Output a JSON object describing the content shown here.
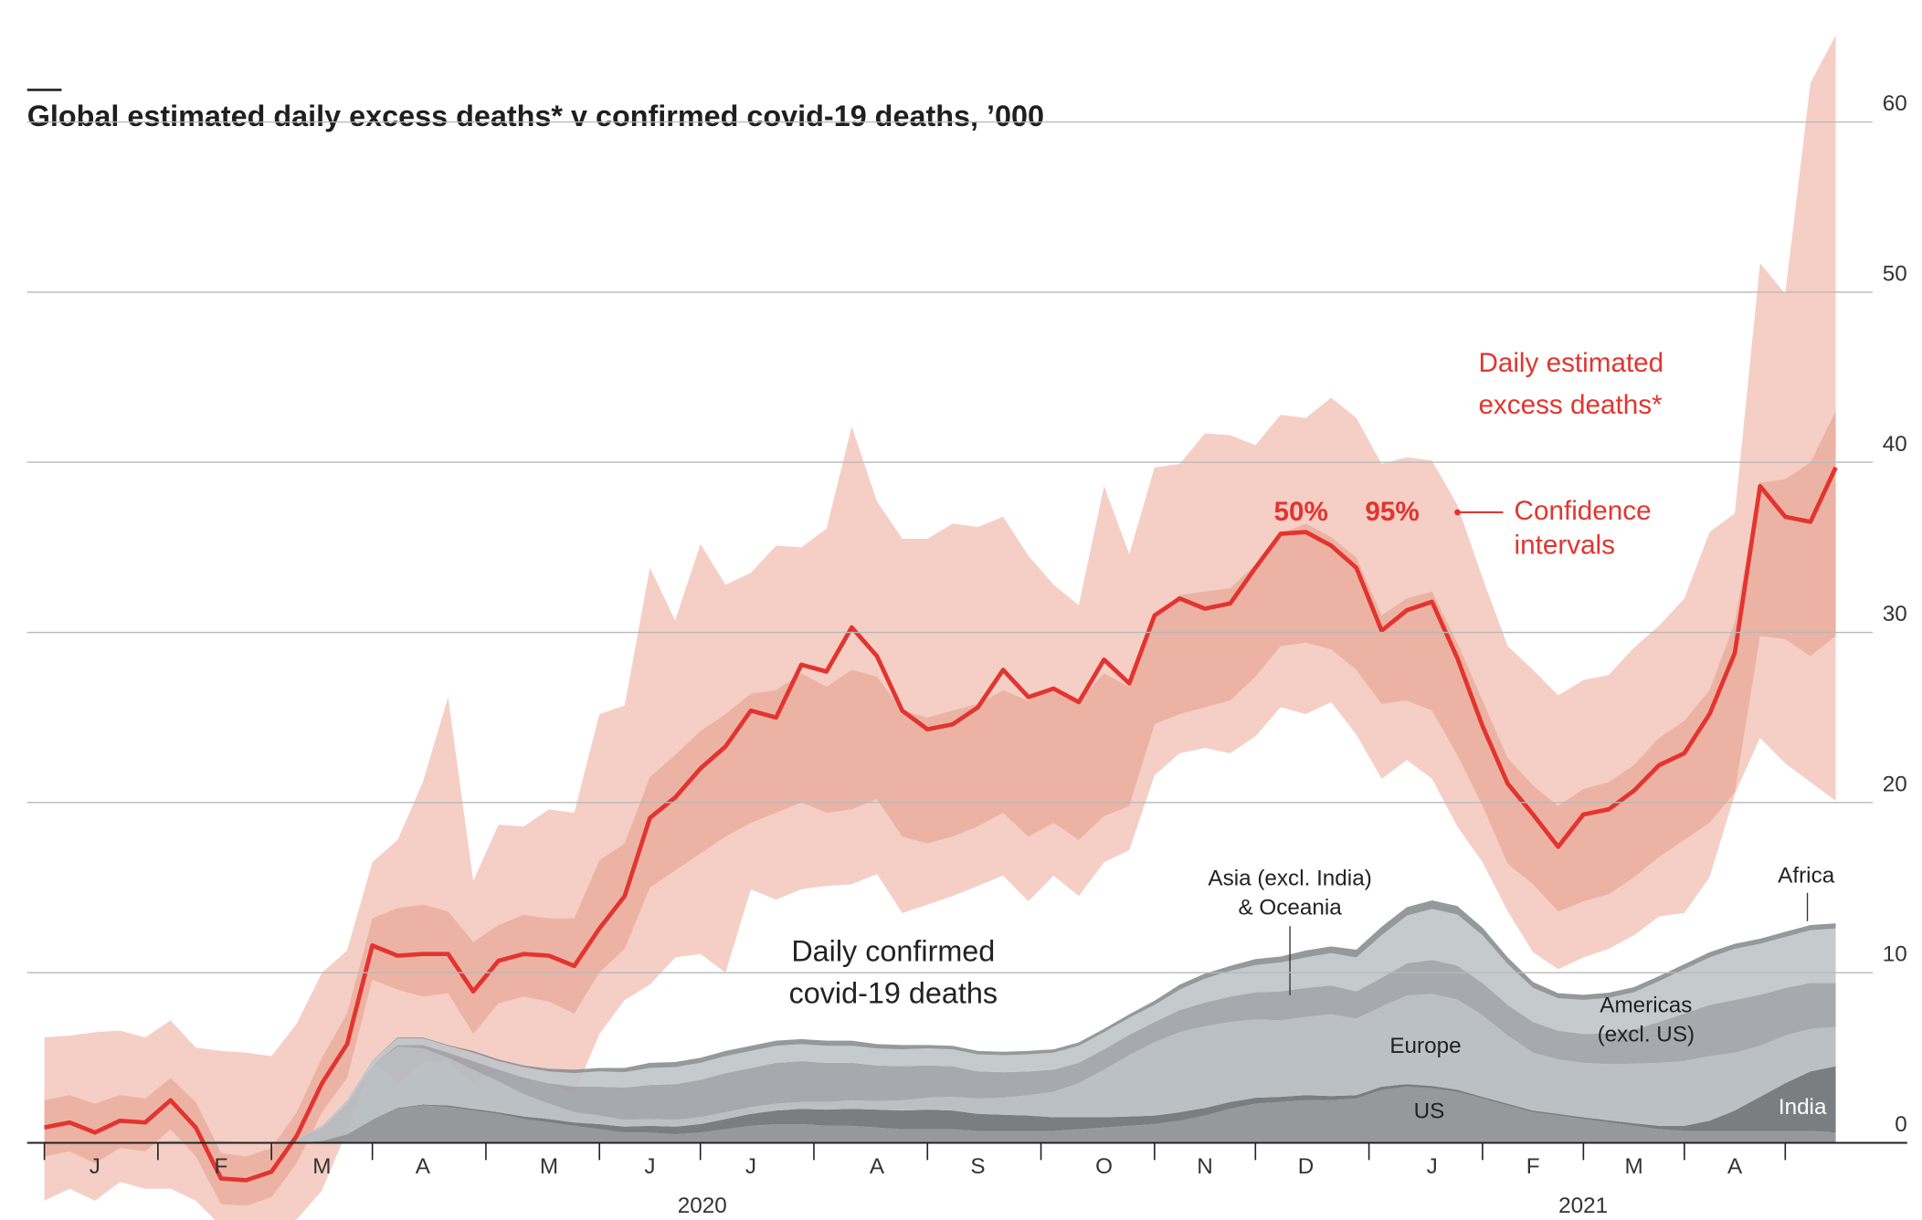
{
  "chart_data": {
    "type": "line",
    "title": "Global estimated daily excess deaths* v confirmed covid-19 deaths, ’000",
    "categories": [
      null,
      null,
      "J",
      null,
      null,
      null,
      null,
      "F",
      null,
      null,
      null,
      "M",
      null,
      null,
      null,
      "A",
      null,
      null,
      null,
      null,
      "M",
      null,
      null,
      null,
      "J",
      null,
      null,
      null,
      "J",
      null,
      null,
      null,
      null,
      "A",
      null,
      null,
      null,
      "S",
      null,
      null,
      null,
      null,
      "O",
      null,
      null,
      null,
      "N",
      null,
      null,
      null,
      "D",
      null,
      null,
      null,
      null,
      "J",
      null,
      null,
      null,
      "F",
      null,
      null,
      null,
      "M",
      null,
      null,
      null,
      "A",
      null,
      null,
      null,
      null
    ],
    "years": [
      "2020",
      "2021"
    ],
    "ylim": [
      -5,
      65
    ],
    "yticks": [
      0,
      10,
      20,
      30,
      40,
      50,
      60
    ],
    "grid": true,
    "excess": {
      "name": [
        "Daily estimated",
        "excess deaths*"
      ],
      "color": "#e3342f",
      "values": [
        0.9,
        1.2,
        0.6,
        1.3,
        1.2,
        2.5,
        0.9,
        -2.1,
        -2.2,
        -1.7,
        0.4,
        3.5,
        5.8,
        11.6,
        11.0,
        11.1,
        11.1,
        8.9,
        10.7,
        11.1,
        11.0,
        10.4,
        12.6,
        14.5,
        19.1,
        20.3,
        22.0,
        23.3,
        25.4,
        25.0,
        28.1,
        27.7,
        30.3,
        28.6,
        25.4,
        24.3,
        24.6,
        25.6,
        27.8,
        26.2,
        26.7,
        25.9,
        28.4,
        27.0,
        31.0,
        32.0,
        31.4,
        31.7,
        33.8,
        35.8,
        35.9,
        35.1,
        33.8,
        30.1,
        31.3,
        31.8,
        28.5,
        24.5,
        21.1,
        19.3,
        17.4,
        19.3,
        19.6,
        20.7,
        22.2,
        22.9,
        25.2,
        28.8,
        38.6,
        36.8,
        36.5,
        39.7
      ]
    },
    "confidence_label": [
      "Confidence",
      "intervals"
    ],
    "intervals": [
      {
        "name": "95%",
        "color": "#f5cfc5",
        "lower": [
          -3.4,
          -2.7,
          -3.4,
          -2.3,
          -2.7,
          -2.7,
          -3.4,
          -4.9,
          -4.9,
          -4.9,
          -4.5,
          -2.8,
          0.7,
          4.8,
          3.5,
          4.7,
          4.8,
          3.5,
          4.2,
          4.0,
          3.5,
          2.9,
          6.4,
          8.4,
          9.3,
          10.9,
          11.1,
          10.0,
          14.9,
          14.3,
          14.9,
          15.1,
          15.2,
          15.8,
          13.5,
          14.0,
          14.5,
          15.1,
          15.7,
          14.2,
          15.7,
          14.5,
          16.5,
          17.2,
          21.6,
          22.9,
          23.2,
          22.9,
          23.9,
          25.6,
          25.2,
          25.9,
          24.0,
          21.4,
          22.5,
          21.4,
          18.6,
          16.5,
          13.6,
          11.2,
          10.2,
          10.9,
          11.4,
          12.2,
          13.3,
          13.5,
          15.6,
          20.5,
          23.8,
          22.3,
          21.2,
          20.1
        ],
        "upper": [
          6.2,
          6.3,
          6.5,
          6.6,
          6.2,
          7.2,
          5.6,
          5.4,
          5.3,
          5.1,
          7.0,
          10.0,
          11.3,
          16.5,
          17.8,
          21.2,
          26.2,
          15.4,
          18.7,
          18.6,
          19.6,
          19.4,
          25.2,
          25.7,
          33.8,
          30.7,
          35.2,
          32.8,
          33.5,
          35.1,
          35.0,
          36.1,
          42.1,
          37.7,
          35.5,
          35.5,
          36.4,
          36.2,
          36.8,
          34.5,
          32.8,
          31.6,
          38.6,
          34.6,
          39.7,
          39.9,
          41.7,
          41.6,
          41.0,
          42.8,
          42.6,
          43.8,
          42.6,
          39.9,
          40.3,
          40.1,
          37.5,
          33.2,
          29.2,
          27.8,
          26.3,
          27.2,
          27.5,
          29.1,
          30.4,
          32.0,
          35.9,
          37.0,
          51.7,
          49.9,
          62.3,
          65.1
        ]
      },
      {
        "name": "50%",
        "color": "#ecb3a5",
        "lower": [
          -0.8,
          -0.5,
          -1.2,
          -0.3,
          -0.5,
          0.8,
          -0.8,
          -3.6,
          -3.7,
          -3.2,
          -1.2,
          1.8,
          3.8,
          9.6,
          9.0,
          8.6,
          8.8,
          6.4,
          8.2,
          8.6,
          8.3,
          7.6,
          10.0,
          11.4,
          15.0,
          16.0,
          17.0,
          18.0,
          18.8,
          19.4,
          20.0,
          19.4,
          19.6,
          20.2,
          18.0,
          17.6,
          18.0,
          18.6,
          19.4,
          18.0,
          18.8,
          17.8,
          19.2,
          19.8,
          24.6,
          25.2,
          25.6,
          26.0,
          27.4,
          29.2,
          29.4,
          29.0,
          27.8,
          25.8,
          26.0,
          25.4,
          22.8,
          19.8,
          16.4,
          15.2,
          13.6,
          14.2,
          14.6,
          15.6,
          16.8,
          17.8,
          18.8,
          20.6,
          29.8,
          29.6,
          28.6,
          29.8
        ],
        "upper": [
          2.5,
          2.8,
          2.3,
          2.8,
          2.6,
          3.8,
          2.4,
          -0.6,
          -0.8,
          -0.3,
          1.8,
          5.0,
          7.6,
          13.2,
          13.8,
          14.0,
          13.6,
          11.8,
          12.8,
          13.4,
          13.2,
          13.2,
          16.6,
          17.6,
          21.5,
          22.8,
          24.2,
          25.2,
          26.4,
          26.6,
          27.6,
          26.8,
          27.8,
          27.4,
          25.4,
          25.0,
          25.4,
          25.8,
          26.6,
          26.0,
          26.8,
          26.0,
          27.6,
          26.8,
          30.8,
          32.2,
          32.4,
          32.6,
          34.0,
          35.8,
          36.4,
          35.6,
          34.4,
          31.0,
          32.0,
          32.4,
          29.4,
          26.0,
          22.6,
          21.0,
          19.8,
          20.8,
          21.2,
          22.2,
          23.8,
          24.8,
          26.6,
          30.6,
          38.8,
          39.0,
          40.0,
          43.0
        ]
      }
    ],
    "confirmed_label": [
      "Daily confirmed",
      "covid-19 deaths"
    ],
    "confirmed": [
      {
        "name": [
          "US"
        ],
        "color": "#8d9093",
        "values": [
          0,
          0,
          0,
          0,
          0,
          0,
          0,
          0,
          0,
          0,
          0,
          0.1,
          0.5,
          1.3,
          2.0,
          2.2,
          2.1,
          1.9,
          1.7,
          1.4,
          1.2,
          1.0,
          0.8,
          0.6,
          0.6,
          0.5,
          0.6,
          0.8,
          1.0,
          1.1,
          1.1,
          1.0,
          1.0,
          0.9,
          0.8,
          0.8,
          0.8,
          0.7,
          0.7,
          0.7,
          0.7,
          0.8,
          0.9,
          1.0,
          1.1,
          1.3,
          1.6,
          2.0,
          2.3,
          2.4,
          2.5,
          2.5,
          2.6,
          3.1,
          3.3,
          3.2,
          3.0,
          2.6,
          2.2,
          1.8,
          1.6,
          1.4,
          1.2,
          1.0,
          0.8,
          0.7,
          0.7,
          0.7,
          0.7,
          0.7,
          0.7,
          0.6
        ]
      },
      {
        "name": [
          "India"
        ],
        "color": "#6f7376",
        "values": [
          0,
          0,
          0,
          0,
          0,
          0,
          0,
          0,
          0,
          0,
          0,
          0,
          0,
          0.05,
          0.05,
          0.05,
          0.1,
          0.1,
          0.1,
          0.15,
          0.2,
          0.2,
          0.3,
          0.35,
          0.4,
          0.45,
          0.5,
          0.6,
          0.7,
          0.8,
          0.9,
          0.95,
          1.0,
          1.05,
          1.1,
          1.15,
          1.1,
          1.0,
          0.95,
          0.9,
          0.8,
          0.7,
          0.6,
          0.55,
          0.5,
          0.5,
          0.45,
          0.4,
          0.35,
          0.3,
          0.3,
          0.25,
          0.2,
          0.2,
          0.15,
          0.15,
          0.12,
          0.1,
          0.1,
          0.1,
          0.1,
          0.1,
          0.12,
          0.15,
          0.2,
          0.3,
          0.6,
          1.2,
          2.0,
          2.8,
          3.5,
          3.9
        ]
      },
      {
        "name": [
          "Europe"
        ],
        "color": "#b5bbbf",
        "values": [
          0,
          0,
          0,
          0,
          0,
          0,
          0,
          0,
          0,
          0,
          0.2,
          0.8,
          1.8,
          3.2,
          3.6,
          3.3,
          2.8,
          2.3,
          1.8,
          1.3,
          0.9,
          0.6,
          0.5,
          0.4,
          0.4,
          0.4,
          0.4,
          0.4,
          0.4,
          0.4,
          0.4,
          0.45,
          0.5,
          0.5,
          0.6,
          0.7,
          0.8,
          0.9,
          1.0,
          1.2,
          1.5,
          2.0,
          2.8,
          3.6,
          4.3,
          4.7,
          4.8,
          4.7,
          4.6,
          4.5,
          4.6,
          4.8,
          4.5,
          4.7,
          5.2,
          5.4,
          5.3,
          4.8,
          4.0,
          3.4,
          3.2,
          3.2,
          3.3,
          3.5,
          3.7,
          3.8,
          3.8,
          3.4,
          3.0,
          2.8,
          2.5,
          2.3
        ]
      },
      {
        "name": [
          "Americas",
          "(excl. US)"
        ],
        "color": "#9ea3a7",
        "values": [
          0,
          0,
          0,
          0,
          0,
          0,
          0,
          0,
          0,
          0,
          0,
          0,
          0,
          0,
          0.1,
          0.2,
          0.3,
          0.5,
          0.7,
          1.0,
          1.2,
          1.5,
          1.7,
          1.9,
          2.0,
          2.1,
          2.2,
          2.3,
          2.3,
          2.4,
          2.4,
          2.3,
          2.2,
          2.1,
          2.0,
          1.9,
          1.8,
          1.6,
          1.5,
          1.4,
          1.3,
          1.2,
          1.2,
          1.2,
          1.2,
          1.3,
          1.4,
          1.5,
          1.6,
          1.7,
          1.7,
          1.7,
          1.6,
          1.7,
          1.9,
          2.0,
          2.0,
          1.9,
          1.8,
          1.8,
          1.7,
          1.7,
          1.8,
          2.0,
          2.4,
          2.8,
          3.0,
          3.1,
          3.0,
          2.8,
          2.7,
          2.6
        ]
      },
      {
        "name": [
          "Asia (excl. India)",
          "& Oceania"
        ],
        "color": "#c0c5c9",
        "values": [
          0,
          0,
          0,
          0,
          0.05,
          0.1,
          0.12,
          0.1,
          0.05,
          0.05,
          0.05,
          0.1,
          0.2,
          0.3,
          0.4,
          0.4,
          0.4,
          0.5,
          0.5,
          0.6,
          0.7,
          0.8,
          0.9,
          0.9,
          1.0,
          1.0,
          1.0,
          1.0,
          1.0,
          1.0,
          1.0,
          1.0,
          1.0,
          1.0,
          1.0,
          1.0,
          1.0,
          1.0,
          1.0,
          1.0,
          1.0,
          1.0,
          1.0,
          1.0,
          1.0,
          1.2,
          1.4,
          1.5,
          1.6,
          1.7,
          1.8,
          1.9,
          2.0,
          2.5,
          2.8,
          3.0,
          3.0,
          2.8,
          2.4,
          2.0,
          1.9,
          2.0,
          2.1,
          2.2,
          2.4,
          2.6,
          2.8,
          3.0,
          3.0,
          3.0,
          3.1,
          3.2
        ]
      },
      {
        "name": [
          "Africa"
        ],
        "color": "#8b9093",
        "values": [
          0,
          0,
          0,
          0,
          0,
          0,
          0,
          0,
          0,
          0,
          0,
          0,
          0,
          0,
          0.05,
          0.05,
          0.05,
          0.1,
          0.1,
          0.1,
          0.15,
          0.2,
          0.2,
          0.25,
          0.3,
          0.3,
          0.3,
          0.3,
          0.3,
          0.3,
          0.3,
          0.3,
          0.3,
          0.25,
          0.25,
          0.2,
          0.2,
          0.2,
          0.2,
          0.2,
          0.2,
          0.2,
          0.2,
          0.2,
          0.25,
          0.3,
          0.3,
          0.3,
          0.35,
          0.35,
          0.4,
          0.4,
          0.45,
          0.5,
          0.5,
          0.5,
          0.5,
          0.45,
          0.4,
          0.35,
          0.3,
          0.3,
          0.3,
          0.3,
          0.3,
          0.3,
          0.3,
          0.3,
          0.3,
          0.3,
          0.3,
          0.3
        ]
      }
    ]
  }
}
